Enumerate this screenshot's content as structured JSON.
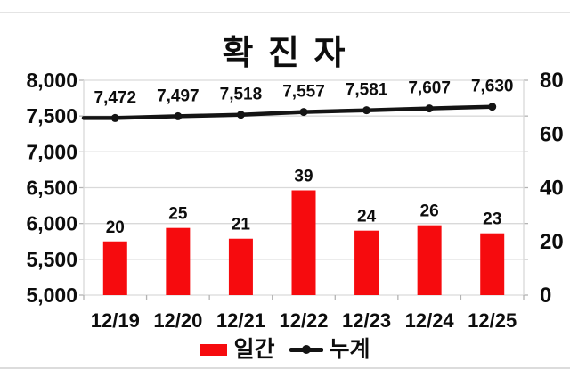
{
  "title": "확 진 자",
  "colors": {
    "bar": "#f60b0e",
    "line": "#141414",
    "text": "#0d0d0d",
    "grid": "#d9d9d9",
    "tick": "#b3b3b3",
    "background": "#ffffff"
  },
  "chart_data": {
    "type": "bar",
    "subtype": "combo-bar-line",
    "title": "확 진 자",
    "categories": [
      "12/19",
      "12/20",
      "12/21",
      "12/22",
      "12/23",
      "12/24",
      "12/25"
    ],
    "series": [
      {
        "name": "일간",
        "type": "bar",
        "axis": "right",
        "color": "#f60b0e",
        "values": [
          20,
          25,
          21,
          39,
          24,
          26,
          23
        ],
        "labels": [
          "20",
          "25",
          "21",
          "39",
          "24",
          "26",
          "23"
        ]
      },
      {
        "name": "누계",
        "type": "line",
        "axis": "left",
        "color": "#141414",
        "values": [
          7472,
          7497,
          7518,
          7557,
          7581,
          7607,
          7630
        ],
        "labels": [
          "7,472",
          "7,497",
          "7,518",
          "7,557",
          "7,581",
          "7,607",
          "7,630"
        ]
      }
    ],
    "left_axis": {
      "min": 5000,
      "max": 8000,
      "tick_values": [
        8000,
        7500,
        7000,
        6500,
        6000,
        5500,
        5000
      ],
      "tick_labels": [
        "8,000",
        "7,500",
        "7,000",
        "6,500",
        "6,000",
        "5,500",
        "5,000"
      ]
    },
    "right_axis": {
      "min": 0,
      "max": 80,
      "tick_values": [
        80,
        60,
        40,
        20,
        0
      ],
      "tick_labels": [
        "80",
        "60",
        "40",
        "20",
        "0"
      ]
    },
    "grid": true,
    "legend_position": "bottom",
    "legend": [
      {
        "label": "일간",
        "swatch": "bar",
        "color": "#f60b0e"
      },
      {
        "label": "누계",
        "swatch": "line",
        "color": "#141414"
      }
    ]
  }
}
